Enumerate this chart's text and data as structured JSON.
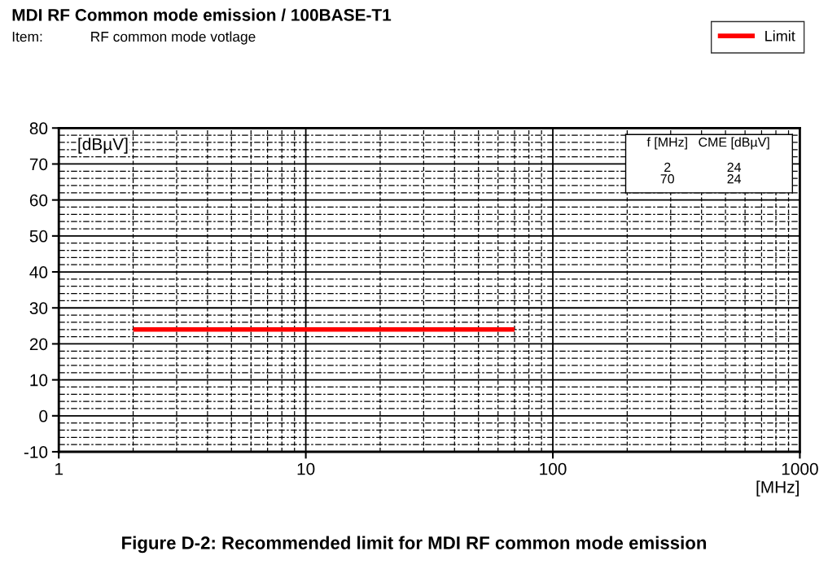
{
  "chart_data": {
    "type": "line",
    "title": "MDI RF Common mode emission / 100BASE-T1",
    "subtitle": "Item:            RF common mode votlage",
    "xlabel": "[MHz]",
    "ylabel": "[dBµV]",
    "x": [
      2,
      70
    ],
    "series": [
      {
        "name": "Limit",
        "color": "#ff0000",
        "values": [
          24,
          24
        ]
      }
    ],
    "log": "x",
    "xlim": [
      1,
      1000
    ],
    "xticks": [
      1,
      10,
      100,
      1000
    ],
    "ylim": [
      -10,
      80
    ],
    "yticks": [
      -10,
      0,
      10,
      20,
      30,
      40,
      50,
      60,
      70,
      80
    ],
    "grid": true,
    "legend": "top right",
    "marker": "none",
    "line_style": "solid",
    "annotations": [
      "f [MHz]",
      "CME [dBµV]",
      "2",
      "24",
      "70",
      "24",
      "Figure D-2: Recommended limit for MDI RF common mode emission"
    ]
  }
}
